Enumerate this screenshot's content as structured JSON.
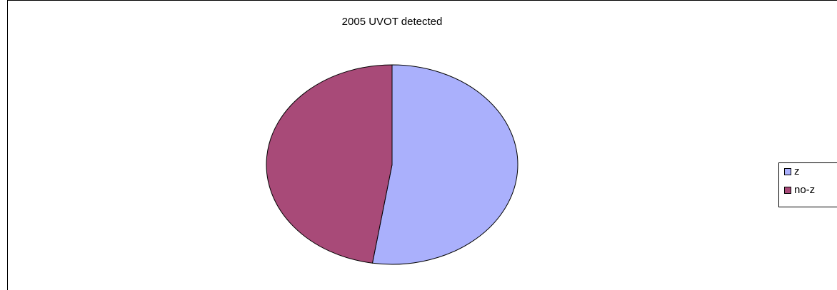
{
  "chart_data": {
    "type": "pie",
    "title": "2005 UVOT detected",
    "categories": [
      "z",
      "no-z"
    ],
    "values": [
      52.5,
      47.5
    ],
    "colors": [
      "#aab0fc",
      "#a84a78"
    ],
    "legend": "right"
  }
}
